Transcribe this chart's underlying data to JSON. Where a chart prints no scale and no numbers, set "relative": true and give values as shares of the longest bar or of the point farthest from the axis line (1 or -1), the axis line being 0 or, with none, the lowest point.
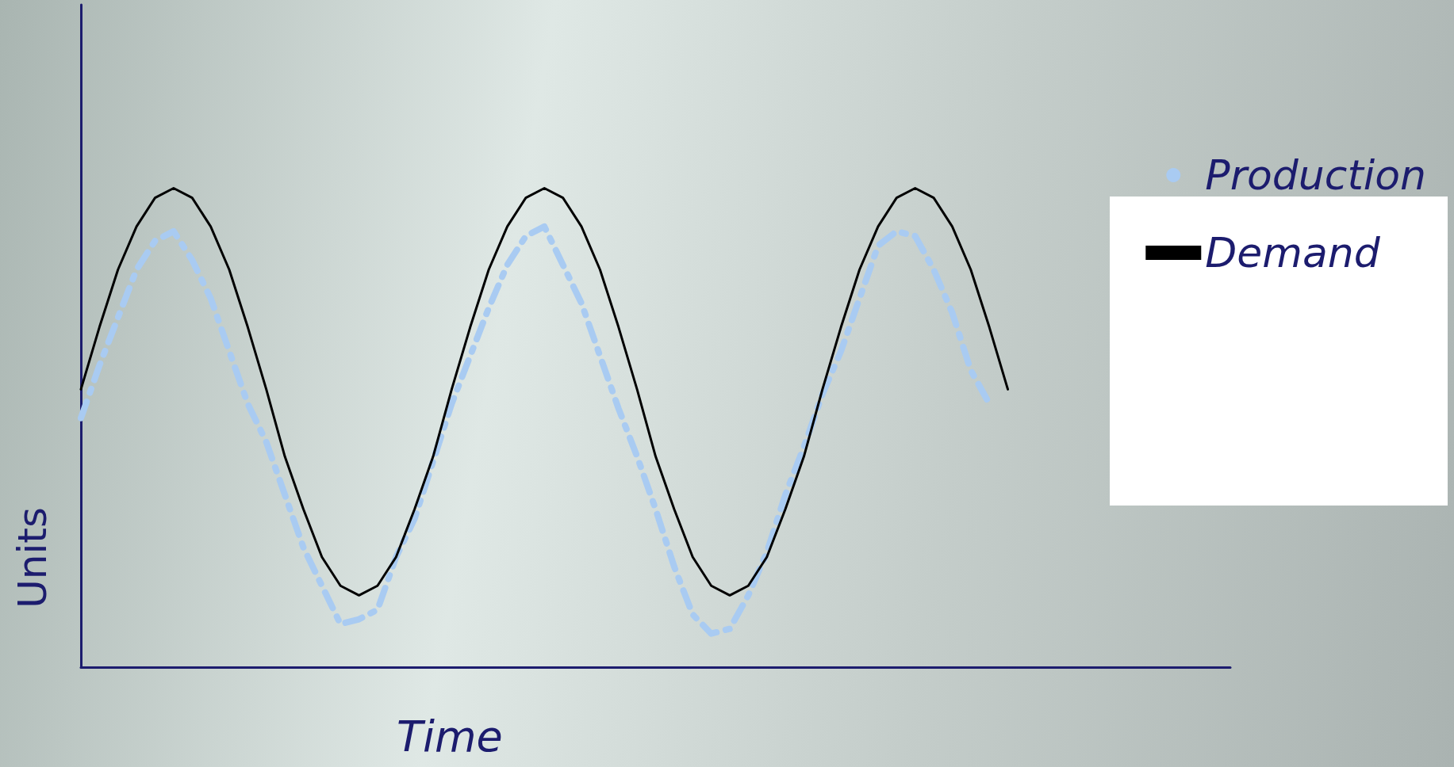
{
  "chart_data": {
    "type": "line",
    "relative": true,
    "xlabel": "Time",
    "ylabel": "Units",
    "categories": [
      null,
      null,
      null,
      null,
      null,
      null,
      null,
      null,
      null,
      null,
      null,
      null,
      null,
      null,
      null,
      null,
      null,
      null,
      null,
      null,
      null,
      null,
      null,
      null,
      null,
      null,
      null,
      null,
      null,
      null,
      null,
      null,
      null,
      null,
      null,
      null,
      null,
      null,
      null,
      null,
      null,
      null,
      null,
      null,
      null,
      null,
      null,
      null,
      null,
      null,
      null
    ],
    "series": [
      {
        "name": "Production",
        "type": "line",
        "color": "#a9cbf2",
        "marker": "none",
        "line_style": "dashed",
        "values": [
          0.52,
          0.63,
          0.73,
          0.83,
          0.89,
          0.91,
          0.85,
          0.77,
          0.66,
          0.55,
          0.47,
          0.36,
          0.25,
          0.17,
          0.09,
          0.1,
          0.12,
          0.23,
          0.31,
          0.43,
          0.55,
          0.65,
          0.75,
          0.84,
          0.9,
          0.92,
          0.84,
          0.76,
          0.65,
          0.54,
          0.44,
          0.33,
          0.21,
          0.11,
          0.07,
          0.08,
          0.15,
          0.24,
          0.36,
          0.46,
          0.57,
          0.66,
          0.77,
          0.88,
          0.91,
          0.9,
          0.83,
          0.74,
          0.62,
          0.55,
          null
        ]
      },
      {
        "name": "Demand",
        "type": "line",
        "color": "#000000",
        "marker": "none",
        "line_style": "solid",
        "values": [
          0.58,
          0.71,
          0.83,
          0.92,
          0.98,
          1,
          0.98,
          0.92,
          0.83,
          0.71,
          0.58,
          0.44,
          0.33,
          0.23,
          0.17,
          0.15,
          0.17,
          0.23,
          0.33,
          0.44,
          0.58,
          0.71,
          0.83,
          0.92,
          0.98,
          1,
          0.98,
          0.92,
          0.83,
          0.71,
          0.58,
          0.44,
          0.33,
          0.23,
          0.17,
          0.15,
          0.17,
          0.23,
          0.33,
          0.44,
          0.58,
          0.71,
          0.83,
          0.92,
          0.98,
          1,
          0.98,
          0.92,
          0.83,
          0.71,
          0.58
        ]
      }
    ],
    "legend": "right",
    "grid": false
  }
}
